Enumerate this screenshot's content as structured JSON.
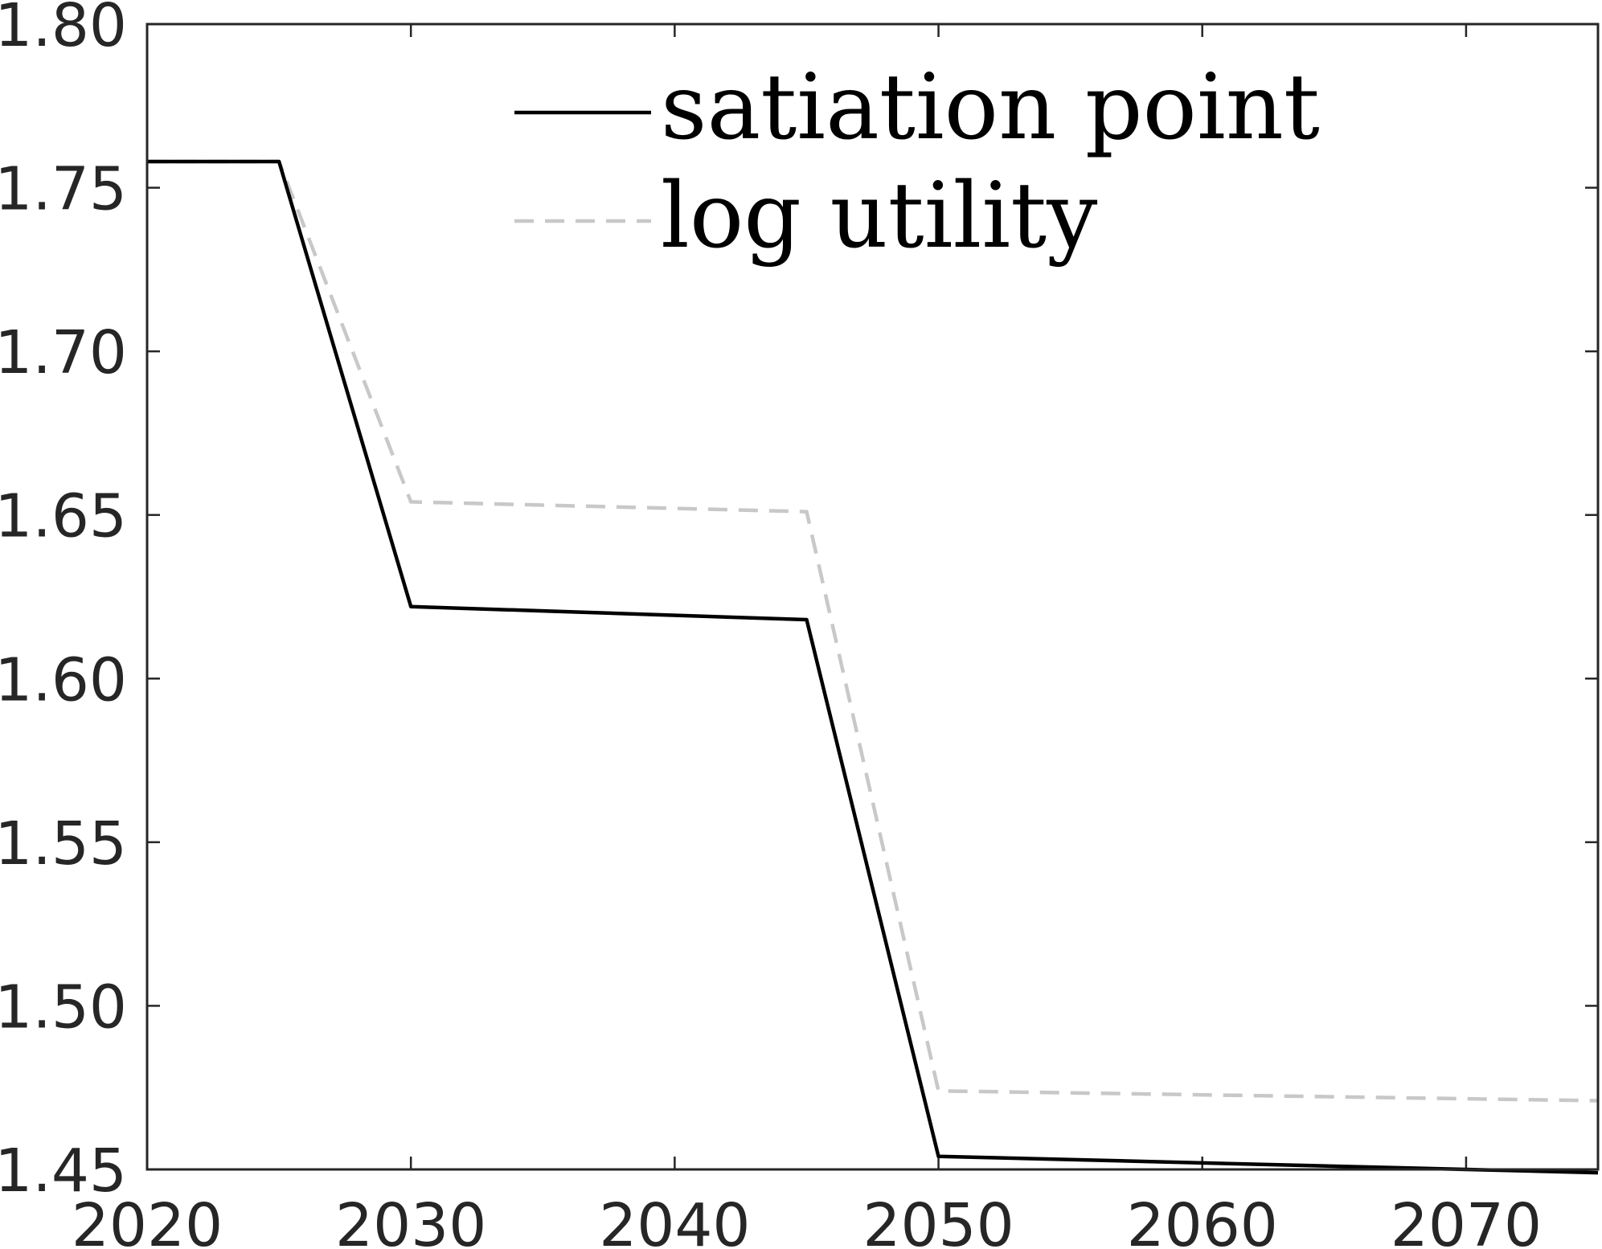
{
  "chart_data": {
    "type": "line",
    "title": "",
    "xlabel": "",
    "ylabel": "",
    "xlim": [
      2020,
      2075
    ],
    "ylim": [
      1.45,
      1.8
    ],
    "xticks": [
      2020,
      2030,
      2040,
      2050,
      2060,
      2070
    ],
    "xtick_labels": [
      "2020",
      "2030",
      "2040",
      "2050",
      "2060",
      "2070"
    ],
    "yticks": [
      1.45,
      1.5,
      1.55,
      1.6,
      1.65,
      1.7,
      1.75,
      1.8
    ],
    "ytick_labels": [
      "1.45",
      "1.50",
      "1.55",
      "1.60",
      "1.65",
      "1.70",
      "1.75",
      "1.80"
    ],
    "grid": false,
    "legend_position": "top-center",
    "series": [
      {
        "name": "satiation point",
        "color": "#000000",
        "style": "solid",
        "x": [
          2020,
          2025,
          2030,
          2045,
          2050,
          2075
        ],
        "y": [
          1.758,
          1.758,
          1.622,
          1.618,
          1.454,
          1.449
        ]
      },
      {
        "name": "log utility",
        "color": "#c8c8c8",
        "style": "dashed",
        "x": [
          2020,
          2025,
          2030,
          2045,
          2050,
          2075
        ],
        "y": [
          1.758,
          1.758,
          1.654,
          1.651,
          1.474,
          1.471
        ]
      }
    ]
  }
}
